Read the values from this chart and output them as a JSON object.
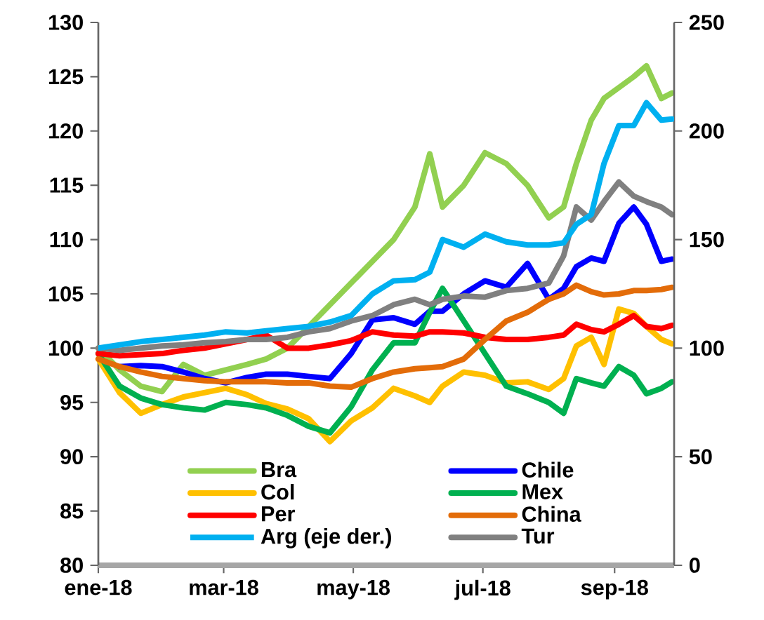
{
  "chart_data": {
    "type": "line",
    "x": [
      "2018-01-01",
      "2018-01-11",
      "2018-01-21",
      "2018-01-31",
      "2018-02-10",
      "2018-02-20",
      "2018-03-02",
      "2018-03-12",
      "2018-03-21",
      "2018-03-31",
      "2018-04-10",
      "2018-04-20",
      "2018-04-30",
      "2018-05-10",
      "2018-05-20",
      "2018-05-30",
      "2018-06-06",
      "2018-06-12",
      "2018-06-22",
      "2018-07-02",
      "2018-07-12",
      "2018-07-22",
      "2018-08-01",
      "2018-08-08",
      "2018-08-14",
      "2018-08-21",
      "2018-08-27",
      "2018-09-03",
      "2018-09-10",
      "2018-09-16",
      "2018-09-23",
      "2018-09-28"
    ],
    "series": [
      {
        "name": "Bra",
        "color": "#92d050",
        "values": [
          100,
          98,
          96.5,
          96,
          98.5,
          97.5,
          98,
          98.5,
          99,
          100,
          102,
          104,
          106,
          108,
          110,
          113,
          117.9,
          113,
          115,
          118,
          117,
          115,
          112,
          113,
          117,
          121,
          123,
          124,
          125,
          126,
          123,
          123.5
        ]
      },
      {
        "name": "Chile",
        "color": "#0000ff",
        "values": [
          null,
          98.3,
          98.4,
          98.3,
          97.8,
          97.2,
          96.8,
          97.3,
          97.6,
          97.6,
          97.4,
          97.2,
          99.5,
          102.6,
          102.8,
          102.2,
          103.4,
          103.4,
          105,
          106.2,
          105.6,
          107.8,
          104.5,
          105.5,
          107.5,
          108.3,
          108,
          111.5,
          113,
          111.4,
          108,
          108.2
        ]
      },
      {
        "name": "Col",
        "color": "#ffc000",
        "values": [
          99,
          95.9,
          94,
          94.8,
          95.5,
          95.9,
          96.3,
          95.7,
          94.9,
          94.4,
          93.5,
          91.4,
          93.3,
          94.5,
          96.3,
          95.6,
          95,
          96.5,
          97.8,
          97.5,
          96.8,
          96.9,
          96.2,
          97.2,
          100.2,
          101,
          98.5,
          103.6,
          103.2,
          102,
          100.8,
          100.4
        ]
      },
      {
        "name": "Mex",
        "color": "#00b050",
        "values": [
          99.5,
          96.5,
          95.4,
          94.8,
          94.5,
          94.3,
          95,
          94.8,
          94.5,
          93.8,
          92.8,
          92.2,
          94.6,
          98,
          100.5,
          100.5,
          103.3,
          105.5,
          102.5,
          99.5,
          96.5,
          95.8,
          95,
          94,
          97.2,
          96.8,
          96.5,
          98.3,
          97.5,
          95.8,
          96.3,
          96.9
        ]
      },
      {
        "name": "Per",
        "color": "#ff0000",
        "values": [
          99.5,
          99.3,
          99.4,
          99.5,
          99.8,
          100,
          100.4,
          100.8,
          101.2,
          100,
          100,
          100.3,
          100.7,
          101.5,
          101.2,
          101.1,
          101.5,
          101.5,
          101.4,
          101,
          100.8,
          100.8,
          101,
          101.2,
          102.2,
          101.7,
          101.5,
          102.2,
          103,
          102,
          101.8,
          102.1
        ]
      },
      {
        "name": "China",
        "color": "#e36c09",
        "values": [
          99,
          98.3,
          97.8,
          97.4,
          97.2,
          97,
          96.9,
          96.9,
          96.9,
          96.8,
          96.8,
          96.5,
          96.4,
          97.2,
          97.8,
          98.1,
          98.2,
          98.3,
          99,
          100.8,
          102.5,
          103.3,
          104.5,
          105,
          105.8,
          105.2,
          104.9,
          105,
          105.3,
          105.3,
          105.4,
          105.6
        ]
      },
      {
        "name": "Arg (eje der.)",
        "color": "#00b0f0",
        "axis": "y2",
        "values": [
          100,
          101.5,
          103,
          104,
          105,
          106,
          107.5,
          107,
          108,
          109,
          110,
          112,
          115,
          125,
          131,
          131.5,
          135,
          150,
          146.5,
          152.5,
          149,
          147.5,
          147.5,
          148.5,
          157,
          161.5,
          185,
          202.5,
          202.5,
          213,
          205,
          205.5
        ]
      },
      {
        "name": "Tur",
        "color": "#808080",
        "values": [
          100,
          99.8,
          100,
          100.2,
          100.3,
          100.5,
          100.6,
          100.8,
          100.8,
          101,
          101.5,
          101.8,
          102.5,
          103,
          104,
          104.5,
          104,
          104.5,
          104.8,
          104.7,
          105.3,
          105.5,
          106,
          108.5,
          113,
          111.8,
          113.5,
          115.3,
          114,
          113.5,
          113,
          112.3
        ]
      }
    ],
    "xlim": [
      "2018-01-01",
      "2018-09-29"
    ],
    "xticks": [
      {
        "value": "2018-01-01",
        "label": "ene-18"
      },
      {
        "value": "2018-03-01",
        "label": "mar-18"
      },
      {
        "value": "2018-05-01",
        "label": "may-18"
      },
      {
        "value": "2018-07-01",
        "label": "jul-18"
      },
      {
        "value": "2018-09-01",
        "label": "sep-18"
      }
    ],
    "ylim": [
      80,
      130
    ],
    "yticks": [
      80,
      85,
      90,
      95,
      100,
      105,
      110,
      115,
      120,
      125,
      130
    ],
    "y2lim": [
      0,
      250
    ],
    "y2ticks": [
      0,
      50,
      100,
      150,
      200,
      250
    ],
    "legend": "bottom"
  }
}
